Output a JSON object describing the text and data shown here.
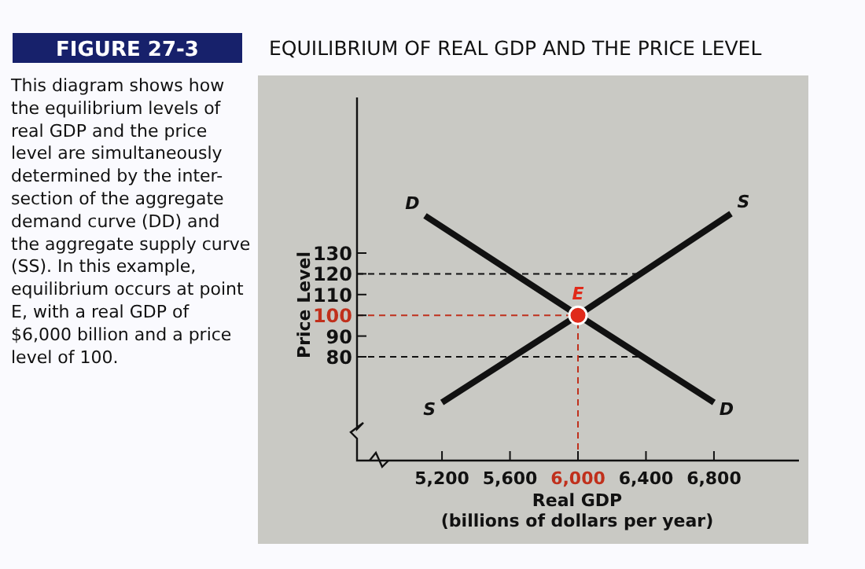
{
  "chart_data": {
    "type": "line",
    "title": "EQUILIBRIUM OF REAL GDP AND THE PRICE LEVEL",
    "xlabel": "Real GDP\n(billions of dollars per year)",
    "ylabel": "Price Level",
    "annotations": [
      "FIGURE 27-3",
      "This diagram shows how\nthe equilibrium levels of\nreal GDP and the price\nlevel are simultaneously\ndetermined by the inter-\nsection of the aggregate\ndemand curve (DD) and\nthe aggregate supply curve\n(SS). In this example,\nequilibrium occurs at point\nE, with a real GDP of\n$6,000 billion and a price\nlevel of 100."
    ],
    "xlim": [
      4700,
      7300
    ],
    "ylim": [
      30,
      205
    ],
    "xticks": [
      {
        "value": 5200,
        "label": "5,200"
      },
      {
        "value": 5600,
        "label": "5,600"
      },
      {
        "value": 6000,
        "label": "6,000"
      },
      {
        "value": 6400,
        "label": "6,400"
      },
      {
        "value": 6800,
        "label": "6,800"
      }
    ],
    "yticks": [
      80,
      90,
      100,
      110,
      120,
      130
    ],
    "grid": false,
    "marker": "none",
    "line_style": "solid",
    "series": [
      {
        "name": "D",
        "color": "#111111",
        "x": [
          5100,
          6000,
          6800
        ],
        "values": [
          148,
          100,
          58
        ]
      },
      {
        "name": "S",
        "color": "#111111",
        "x": [
          5200,
          6000,
          6900
        ],
        "values": [
          58,
          100,
          149
        ]
      },
      {
        "name": "E",
        "type": "scatter",
        "marker": "circle",
        "color": "#e02a1a",
        "x": [
          6000
        ],
        "values": [
          100
        ]
      }
    ],
    "ref_lines": [
      {
        "axis": "y",
        "value": 120,
        "color": "#111111",
        "line_style": "dashed"
      },
      {
        "axis": "y",
        "value": 80,
        "color": "#111111",
        "line_style": "dashed"
      },
      {
        "axis": "y",
        "value": 100,
        "color": "#c0301c",
        "line_style": "dashed"
      },
      {
        "axis": "x",
        "value": 6000,
        "color": "#c0301c",
        "line_style": "dashed"
      }
    ]
  }
}
